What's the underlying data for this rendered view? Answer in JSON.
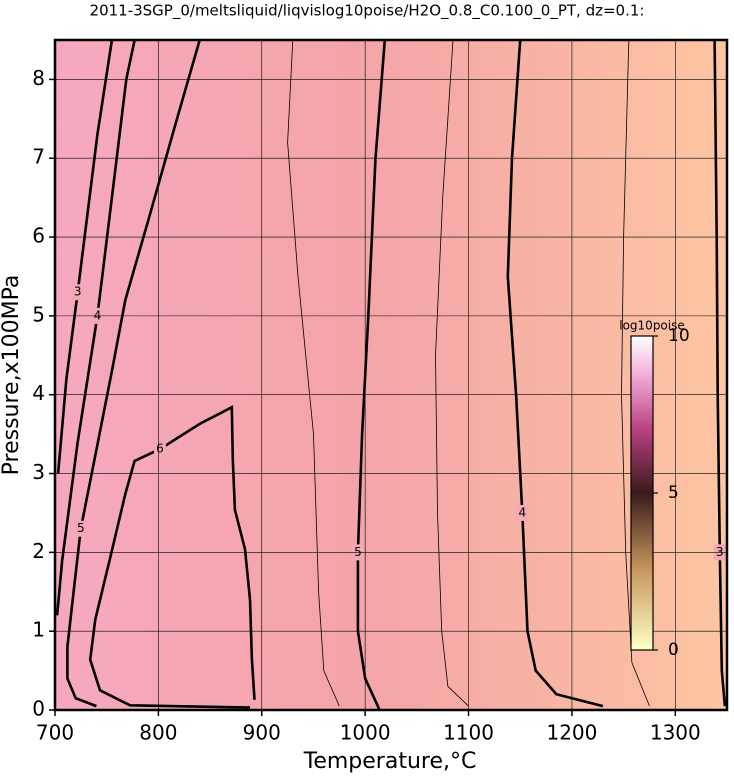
{
  "chart_data": {
    "type": "contour",
    "title": "2011-3SGP_0/meltsliquid/liqvislog10poise/H2O_0.8_C0.100_0_PT, dz=0.1:",
    "x_label": "Temperature,°C",
    "y_label": "Pressure,x100MPa",
    "xlim": [
      700,
      1350
    ],
    "ylim": [
      0,
      8.5
    ],
    "xticks": [
      700,
      800,
      900,
      1000,
      1100,
      1200,
      1300
    ],
    "yticks": [
      0,
      1,
      2,
      3,
      4,
      5,
      6,
      7,
      8
    ],
    "grid": true,
    "contours": [
      {
        "level": 5,
        "bold": true,
        "x": [
          1019,
          1010,
          1003,
          997,
          993,
          993,
          1000,
          1014
        ],
        "y": [
          8.5,
          7,
          5,
          3.5,
          2,
          1,
          0.4,
          0
        ]
      },
      {
        "level": 4,
        "bold": true,
        "x": [
          1150,
          1142,
          1138,
          1146,
          1152,
          1157,
          1165,
          1185,
          1230
        ],
        "y": [
          8.5,
          7,
          5.5,
          4,
          2.5,
          1,
          0.5,
          0.2,
          0.05
        ]
      },
      {
        "level": 3,
        "bold": true,
        "x": [
          1338,
          1340,
          1341,
          1343,
          1345,
          1348
        ],
        "y": [
          8.5,
          6,
          4,
          2,
          0.5,
          0.05
        ]
      },
      {
        "level": 5,
        "bold": true,
        "x": [
          840,
          818,
          790,
          768,
          755,
          740,
          725,
          718,
          712,
          712,
          720,
          740
        ],
        "y": [
          8.5,
          7.5,
          6.2,
          5.2,
          4.3,
          3.3,
          2.3,
          1.5,
          0.8,
          0.4,
          0.15,
          0.05
        ]
      },
      {
        "level": 6,
        "bold": true,
        "x": [
          893,
          890.5,
          888.6,
          883.8,
          874,
          872,
          871,
          840,
          801.5,
          777,
          768,
          753,
          739,
          734,
          743.5,
          772.5,
          888.6
        ],
        "y": [
          0.13,
          0.64,
          1.4,
          2.04,
          2.54,
          3.18,
          3.84,
          3.63,
          3.31,
          3.16,
          2.74,
          1.91,
          1.15,
          0.64,
          0.25,
          0.06,
          0.03
        ]
      },
      {
        "level": 4,
        "bold": true,
        "x": [
          777,
          769,
          755,
          741,
          722,
          707,
          702
        ],
        "y": [
          8.5,
          8,
          6.5,
          5,
          3.4,
          1.9,
          1.2
        ]
      },
      {
        "level": 3,
        "bold": true,
        "x": [
          755,
          741,
          722,
          711,
          703
        ],
        "y": [
          8.5,
          7.3,
          5.3,
          4.2,
          3
        ]
      },
      {
        "level": 4.5,
        "bold": false,
        "x": [
          1085,
          1075,
          1068,
          1070,
          1074,
          1080,
          1100
        ],
        "y": [
          8.5,
          6.5,
          4.5,
          2.5,
          1,
          0.3,
          0.05
        ]
      },
      {
        "level": 3.5,
        "bold": false,
        "x": [
          1255,
          1250,
          1248,
          1252,
          1258,
          1275
        ],
        "y": [
          8.5,
          6,
          4,
          2,
          0.6,
          0.05
        ]
      },
      {
        "level": 5.5,
        "bold": false,
        "x": [
          930,
          925,
          935,
          950,
          955,
          960,
          975
        ],
        "y": [
          8.5,
          7.2,
          5.5,
          3.5,
          1.5,
          0.5,
          0.05
        ]
      }
    ],
    "colorbar": {
      "label": "log10poise",
      "lim": [
        0,
        10
      ],
      "ticks": [
        0,
        5,
        10
      ]
    }
  }
}
